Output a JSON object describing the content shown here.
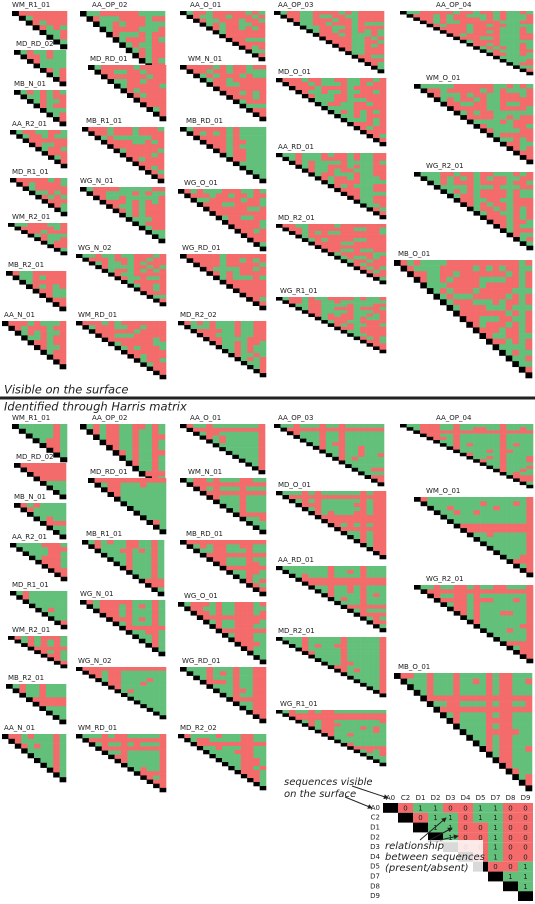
{
  "panels": [
    {
      "title": "Visible on the surface",
      "matrices": [
        "WM_R1_01",
        "MD_RD_02",
        "MB_N_01",
        "AA_R2_01",
        "MD_R1_01",
        "WM_R2_01",
        "MB_R2_01",
        "AA_N_01",
        "AA_OP_02",
        "MD_RD_01",
        "MB_R1_01",
        "WG_N_01",
        "WG_N_02",
        "WM_RD_01",
        "AA_O_01",
        "WM_N_01",
        "MB_RD_01",
        "WG_O_01",
        "WG_RD_01",
        "MD_R2_02",
        "AA_OP_03",
        "MD_O_01",
        "AA_RD_01",
        "MD_R2_01",
        "WG_R1_01",
        "AA_OP_04",
        "WM_O_01",
        "WG_R2_01",
        "MB_O_01"
      ]
    },
    {
      "title": "Identified through Harris matrix",
      "matrices": [
        "WM_R1_01",
        "MD_RD_02",
        "MB_N_01",
        "AA_R2_01",
        "MD_R1_01",
        "WM_R2_01",
        "MB_R2_01",
        "AA_N_01",
        "AA_OP_02",
        "MD_RD_01",
        "MB_R1_01",
        "WG_N_01",
        "WG_N_02",
        "WM_RD_01",
        "AA_O_01",
        "WM_N_01",
        "MB_RD_01",
        "WG_O_01",
        "WG_RD_01",
        "MD_R2_02",
        "AA_OP_03",
        "MD_O_01",
        "AA_RD_01",
        "MD_R2_01",
        "WG_R1_01",
        "AA_OP_04",
        "WM_O_01",
        "WG_R2_01",
        "MB_O_01"
      ]
    }
  ],
  "legend": {
    "surface_note": [
      "sequences visible",
      "on the surface"
    ],
    "relationship_note": [
      "relationship",
      "between sequences",
      "(present/absent)"
    ],
    "sequences": [
      "A0",
      "C2",
      "D1",
      "D2",
      "D3",
      "D4",
      "D5",
      "D7",
      "D8",
      "D9"
    ],
    "rows": [
      [
        0,
        1,
        1,
        0,
        0,
        1,
        1,
        0,
        0
      ],
      [
        0,
        1,
        1,
        0,
        1,
        1,
        0,
        0
      ],
      [
        1,
        1,
        0,
        0,
        1,
        0,
        0
      ],
      [
        1,
        0,
        0,
        1,
        0,
        0
      ],
      [
        0,
        0,
        1,
        0,
        0
      ],
      [
        0,
        1,
        0,
        0
      ],
      [
        0,
        0,
        1
      ],
      [
        1,
        1
      ],
      [
        1
      ],
      []
    ]
  }
}
